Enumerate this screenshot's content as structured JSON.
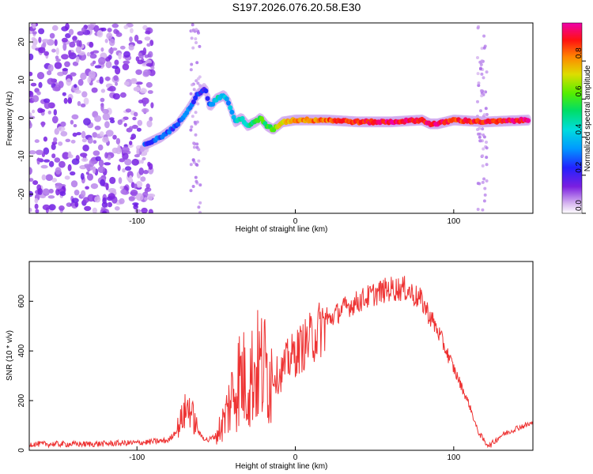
{
  "title": "S197.2026.076.20.58.E30",
  "chart_data": [
    {
      "type": "heatmap",
      "xlabel": "Height of straight line (km)",
      "ylabel": "Frequency (Hz)",
      "xlim": [
        -168,
        150
      ],
      "ylim": [
        -25,
        25
      ],
      "xticks": [
        -100,
        0,
        100
      ],
      "yticks": [
        -20,
        -10,
        0,
        10,
        20
      ],
      "grid": false,
      "colorbar": {
        "label": "Normalized spectral amplitude",
        "range": [
          0,
          1
        ],
        "ticks": [
          0.0,
          0.2,
          0.4,
          0.6,
          0.8
        ],
        "tick_labels": [
          "0.0",
          "0.2",
          "0.4",
          "0.6",
          "0.8"
        ]
      },
      "ridge": {
        "x": [
          -95,
          -85,
          -75,
          -68,
          -62,
          -57,
          -54,
          -50,
          -45,
          -42,
          -38,
          -34,
          -30,
          -25,
          -22,
          -18,
          -14,
          -8,
          0,
          20,
          40,
          60,
          80,
          85,
          90,
          100,
          120,
          148
        ],
        "y": [
          -7,
          -5,
          -2,
          2,
          6,
          8,
          3,
          5,
          6,
          4,
          -1,
          0,
          -2,
          -1,
          0,
          -2,
          -3,
          -1,
          -0.5,
          -0.5,
          -1,
          -1,
          -0.5,
          -1.5,
          -1.5,
          -0.5,
          -1,
          -0.5
        ],
        "amplitude": [
          0.25,
          0.3,
          0.25,
          0.3,
          0.25,
          0.2,
          0.35,
          0.45,
          0.4,
          0.35,
          0.4,
          0.45,
          0.5,
          0.55,
          0.6,
          0.55,
          0.6,
          0.75,
          0.8,
          0.85,
          0.9,
          0.95,
          0.9,
          0.95,
          0.95,
          0.9,
          0.9,
          0.95
        ]
      }
    },
    {
      "type": "line",
      "xlabel": "Height of straight line (km)",
      "ylabel": "SNR (10 * v/v)",
      "xlim": [
        -168,
        150
      ],
      "ylim": [
        0,
        760
      ],
      "xticks": [
        -100,
        0,
        100
      ],
      "yticks": [
        0,
        200,
        400,
        600
      ],
      "grid": false,
      "color": "#ee3333",
      "series": [
        {
          "name": "SNR",
          "x": [
            -168,
            -130,
            -100,
            -80,
            -75,
            -70,
            -67,
            -64,
            -60,
            -55,
            -50,
            -45,
            -40,
            -35,
            -30,
            -25,
            -20,
            -15,
            -10,
            -5,
            0,
            10,
            20,
            30,
            40,
            50,
            60,
            70,
            80,
            90,
            100,
            110,
            115,
            120,
            123,
            130,
            140,
            150
          ],
          "y": [
            25,
            25,
            30,
            40,
            80,
            150,
            180,
            120,
            60,
            40,
            60,
            120,
            220,
            300,
            270,
            330,
            330,
            310,
            300,
            360,
            390,
            450,
            520,
            570,
            600,
            630,
            650,
            650,
            600,
            480,
            330,
            180,
            80,
            30,
            20,
            60,
            90,
            110
          ]
        }
      ]
    }
  ]
}
